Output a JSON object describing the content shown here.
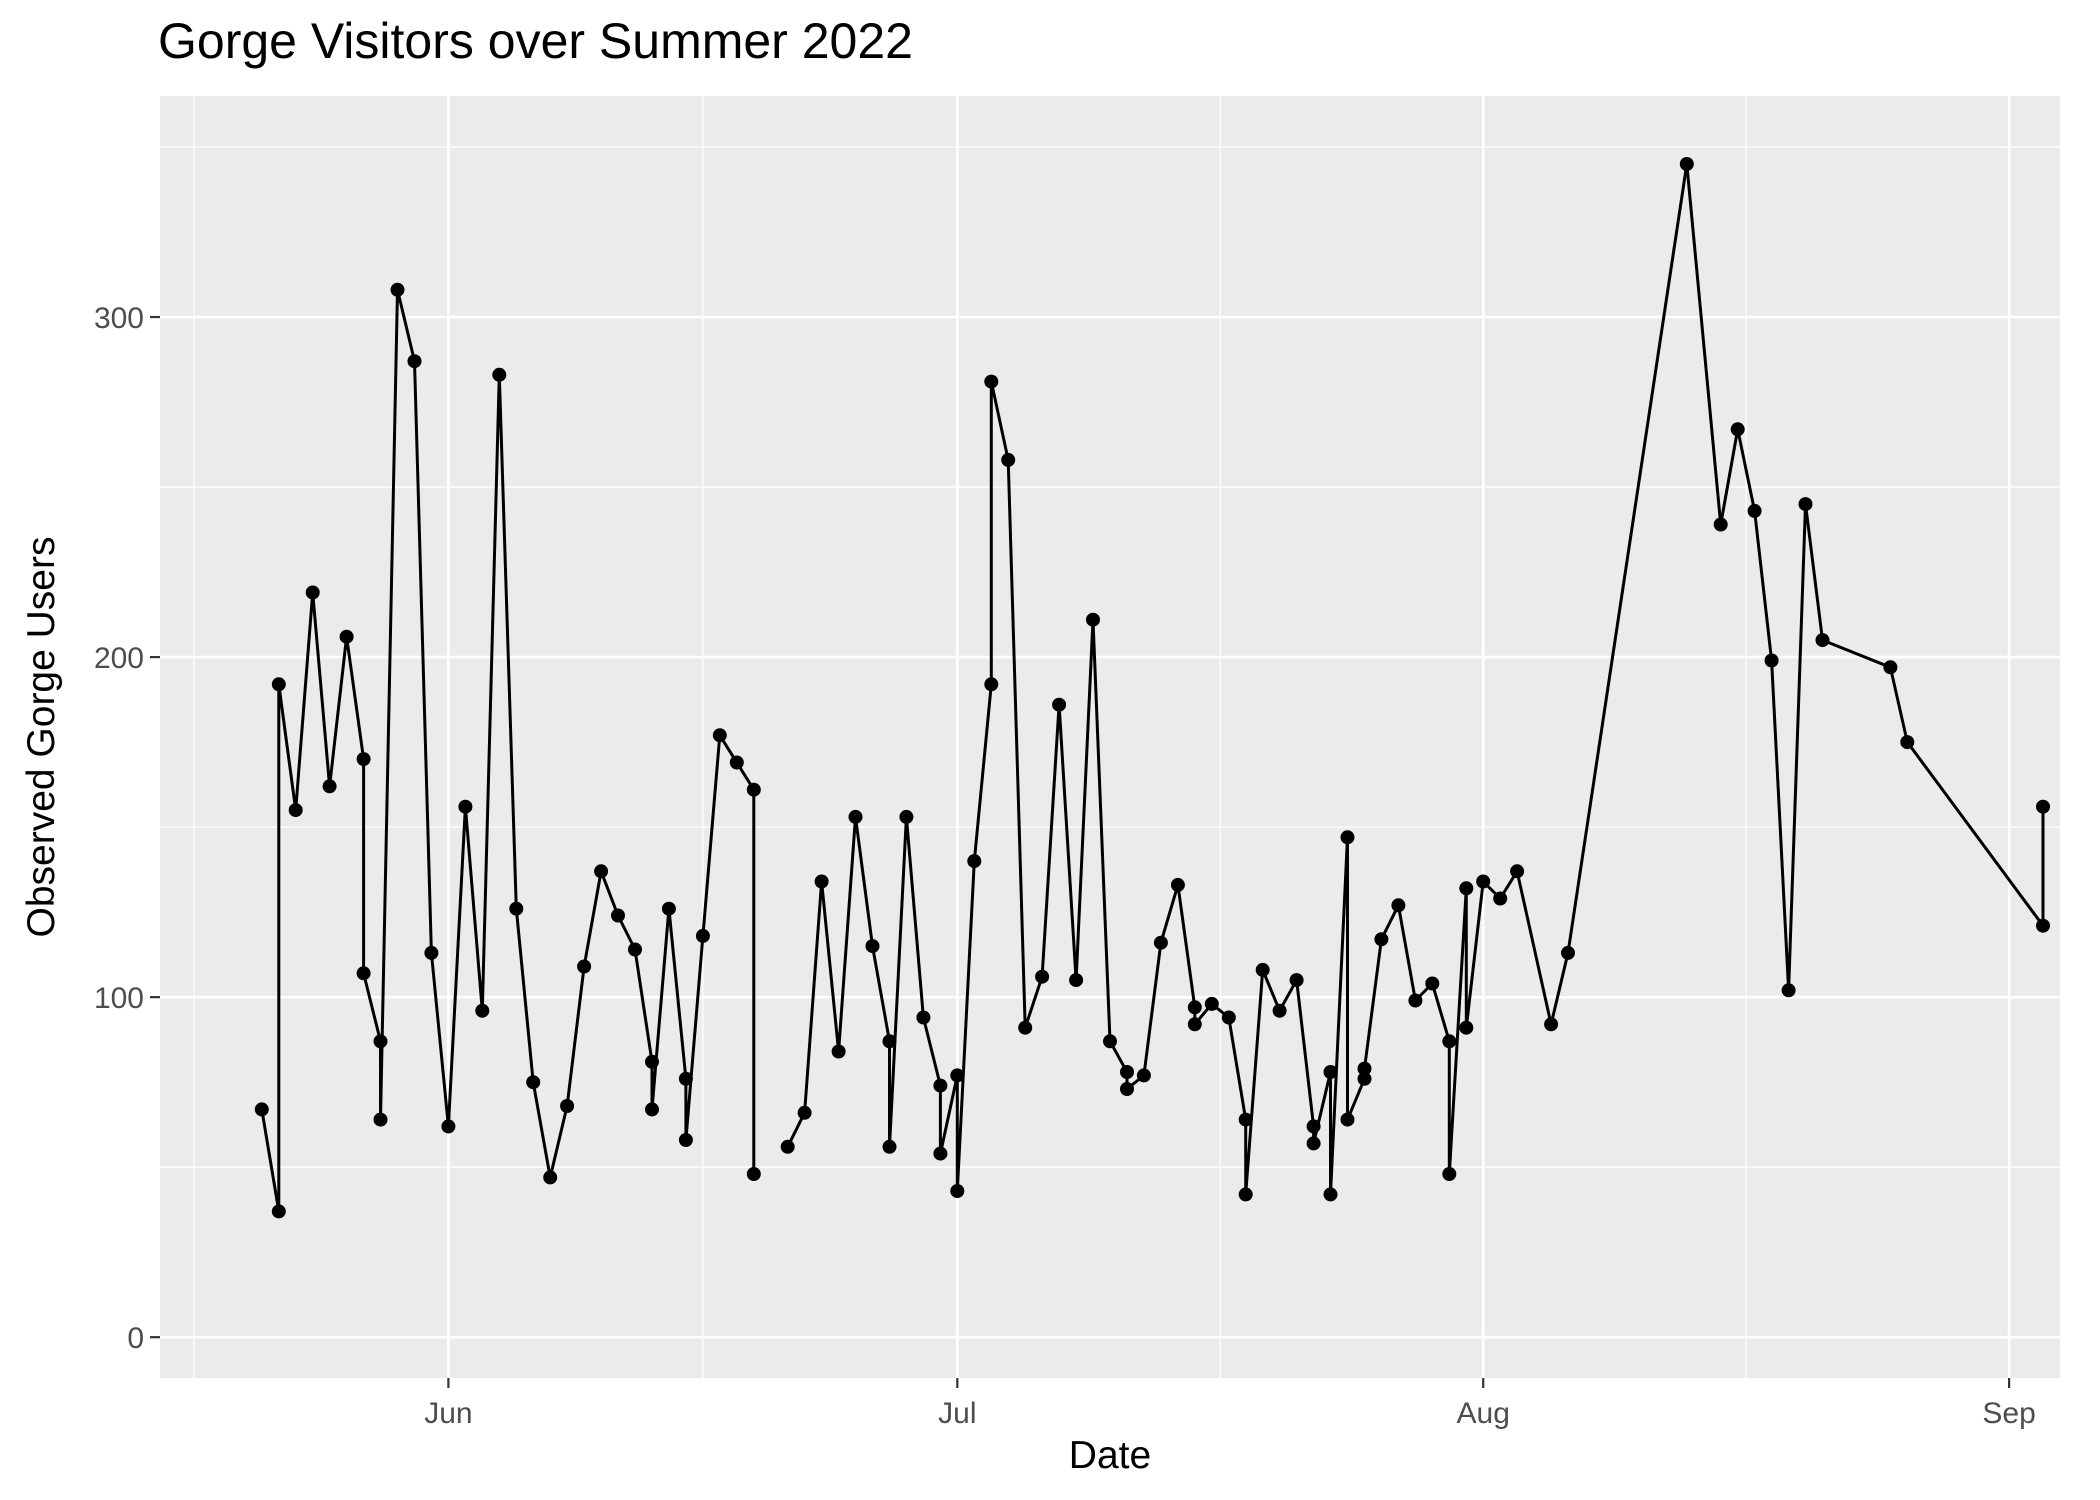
{
  "chart_data": {
    "type": "line",
    "title": "Gorge Visitors over Summer 2022",
    "xlabel": "Date",
    "ylabel": "Observed Gorge Users",
    "grid": true,
    "legend": "none",
    "x_range": [
      "2022-05-15",
      "2022-09-04"
    ],
    "ylim": [
      -12,
      365
    ],
    "y_ticks": [
      0,
      100,
      200,
      300
    ],
    "x_ticks": [
      {
        "date": "2022-06-01",
        "label": "Jun"
      },
      {
        "date": "2022-07-01",
        "label": "Jul"
      },
      {
        "date": "2022-08-01",
        "label": "Aug"
      },
      {
        "date": "2022-09-01",
        "label": "Sep"
      }
    ],
    "series": [
      {
        "color": "#000000",
        "points": [
          [
            "2022-05-21",
            67
          ],
          [
            "2022-05-22",
            37
          ],
          [
            "2022-05-22",
            192
          ],
          [
            "2022-05-23",
            155
          ],
          [
            "2022-05-24",
            219
          ],
          [
            "2022-05-25",
            162
          ],
          [
            "2022-05-26",
            206
          ],
          [
            "2022-05-27",
            170
          ],
          [
            "2022-05-27",
            107
          ],
          [
            "2022-05-28",
            87
          ],
          [
            "2022-05-28",
            64
          ],
          [
            "2022-05-29",
            308
          ],
          [
            "2022-05-30",
            287
          ],
          [
            "2022-05-31",
            113
          ],
          [
            "2022-06-01",
            62
          ],
          [
            "2022-06-02",
            156
          ],
          [
            "2022-06-03",
            96
          ],
          [
            "2022-06-04",
            283
          ],
          [
            "2022-06-05",
            126
          ],
          [
            "2022-06-06",
            75
          ],
          [
            "2022-06-07",
            47
          ],
          [
            "2022-06-08",
            68
          ],
          [
            "2022-06-09",
            109
          ],
          [
            "2022-06-10",
            137
          ],
          [
            "2022-06-11",
            124
          ],
          [
            "2022-06-12",
            114
          ],
          [
            "2022-06-13",
            81
          ],
          [
            "2022-06-13",
            67
          ],
          [
            "2022-06-14",
            126
          ],
          [
            "2022-06-15",
            76
          ],
          [
            "2022-06-15",
            58
          ],
          [
            "2022-06-16",
            118
          ],
          [
            "2022-06-17",
            177
          ],
          [
            "2022-06-18",
            169
          ],
          [
            "2022-06-19",
            161
          ],
          [
            "2022-06-19",
            48
          ],
          null,
          [
            "2022-06-21",
            56
          ],
          [
            "2022-06-22",
            66
          ],
          [
            "2022-06-23",
            134
          ],
          [
            "2022-06-24",
            84
          ],
          [
            "2022-06-25",
            153
          ],
          [
            "2022-06-26",
            115
          ],
          [
            "2022-06-27",
            87
          ],
          [
            "2022-06-27",
            56
          ],
          [
            "2022-06-28",
            153
          ],
          [
            "2022-06-29",
            94
          ],
          [
            "2022-06-30",
            74
          ],
          [
            "2022-06-30",
            54
          ],
          [
            "2022-07-01",
            77
          ],
          [
            "2022-07-01",
            43
          ],
          [
            "2022-07-02",
            140
          ],
          [
            "2022-07-03",
            192
          ],
          [
            "2022-07-03",
            281
          ],
          [
            "2022-07-04",
            258
          ],
          [
            "2022-07-05",
            91
          ],
          [
            "2022-07-06",
            106
          ],
          [
            "2022-07-07",
            186
          ],
          [
            "2022-07-08",
            105
          ],
          [
            "2022-07-09",
            211
          ],
          [
            "2022-07-10",
            87
          ],
          [
            "2022-07-11",
            78
          ],
          [
            "2022-07-11",
            73
          ],
          [
            "2022-07-12",
            77
          ],
          [
            "2022-07-13",
            116
          ],
          [
            "2022-07-14",
            133
          ],
          [
            "2022-07-15",
            97
          ],
          [
            "2022-07-15",
            92
          ],
          [
            "2022-07-16",
            98
          ],
          [
            "2022-07-17",
            94
          ],
          [
            "2022-07-18",
            64
          ],
          [
            "2022-07-18",
            42
          ],
          [
            "2022-07-19",
            108
          ],
          [
            "2022-07-20",
            96
          ],
          [
            "2022-07-21",
            105
          ],
          [
            "2022-07-22",
            62
          ],
          [
            "2022-07-22",
            57
          ],
          [
            "2022-07-23",
            78
          ],
          [
            "2022-07-23",
            42
          ],
          [
            "2022-07-24",
            147
          ],
          [
            "2022-07-24",
            64
          ],
          [
            "2022-07-25",
            76
          ],
          [
            "2022-07-25",
            79
          ],
          [
            "2022-07-26",
            117
          ],
          [
            "2022-07-27",
            127
          ],
          [
            "2022-07-28",
            99
          ],
          [
            "2022-07-29",
            104
          ],
          [
            "2022-07-30",
            87
          ],
          [
            "2022-07-30",
            48
          ],
          [
            "2022-07-31",
            132
          ],
          [
            "2022-07-31",
            91
          ],
          [
            "2022-08-01",
            134
          ],
          [
            "2022-08-02",
            129
          ],
          [
            "2022-08-03",
            137
          ],
          [
            "2022-08-05",
            92
          ],
          [
            "2022-08-06",
            113
          ],
          [
            "2022-08-13",
            345
          ],
          [
            "2022-08-15",
            239
          ],
          [
            "2022-08-16",
            267
          ],
          [
            "2022-08-17",
            243
          ],
          [
            "2022-08-18",
            199
          ],
          [
            "2022-08-19",
            102
          ],
          [
            "2022-08-20",
            245
          ],
          [
            "2022-08-21",
            205
          ],
          [
            "2022-08-25",
            197
          ],
          [
            "2022-08-26",
            175
          ],
          [
            "2022-09-03",
            121
          ],
          [
            "2022-09-03",
            156
          ]
        ]
      }
    ]
  }
}
